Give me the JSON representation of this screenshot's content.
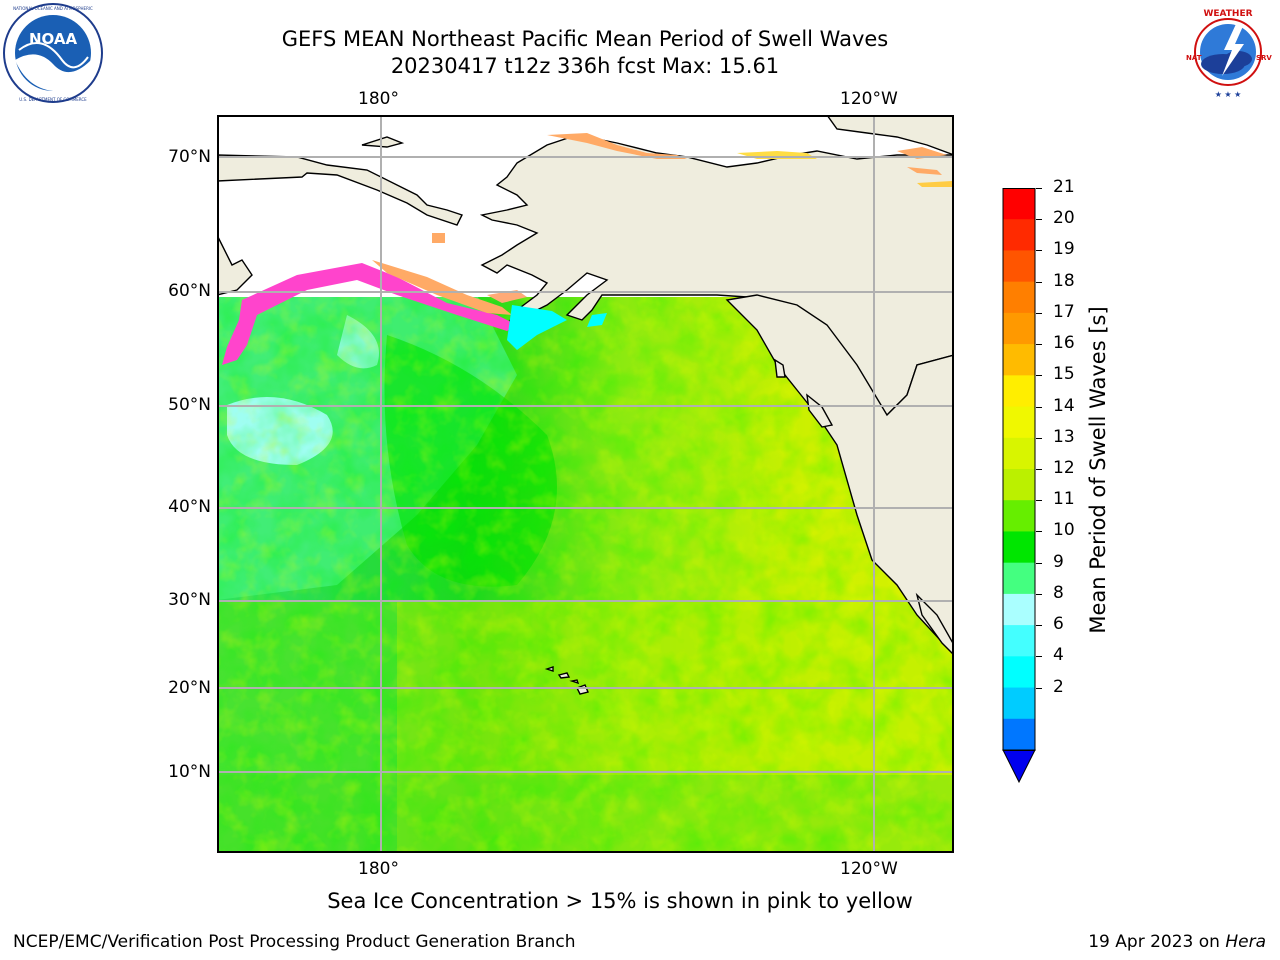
{
  "title_line1": "GEFS MEAN Northeast Pacific Mean Period of Swell Waves",
  "title_line2": "20230417 t12z 336h fcst   Max: 15.61",
  "logos": {
    "left": {
      "icon": "noaa-logo",
      "text": "NOAA",
      "ring_text": "NATIONAL OCEANIC AND ATMOSPHERIC ADMINISTRATION · U.S. DEPARTMENT OF COMMERCE"
    },
    "right": {
      "icon": "nws-logo",
      "ring_text": "NATIONAL WEATHER SERVICE"
    }
  },
  "map": {
    "lon_labels_top": [
      "180°",
      "120°W"
    ],
    "lon_labels_bottom": [
      "180°",
      "120°W"
    ],
    "lat_labels": [
      "70°N",
      "60°N",
      "50°N",
      "40°N",
      "30°N",
      "20°N",
      "10°N"
    ],
    "land_color": "#efedde",
    "grid_color": "#b0b0b0"
  },
  "colorbar": {
    "title": "Mean Period of Swell Waves [s]",
    "levels": [
      "21",
      "20",
      "19",
      "18",
      "17",
      "16",
      "15",
      "14",
      "13",
      "12",
      "11",
      "10",
      "9",
      "8",
      "6",
      "4",
      "2"
    ],
    "colors": [
      "#ff0000",
      "#ff2a00",
      "#ff5500",
      "#ff7f00",
      "#ff9900",
      "#ffbb00",
      "#ffee00",
      "#f0f800",
      "#d8f500",
      "#bbf000",
      "#66ee00",
      "#00e600",
      "#44ff80",
      "#aaffff",
      "#44ffff",
      "#00ffff",
      "#00ccff",
      "#0077ff",
      "#0000ee"
    ]
  },
  "note": "Sea Ice Concentration > 15% is shown in pink to yellow",
  "footer_left": "NCEP/EMC/Verification Post Processing Product Generation Branch",
  "footer_date": "19 Apr 2023 on ",
  "footer_machine": "Hera"
}
